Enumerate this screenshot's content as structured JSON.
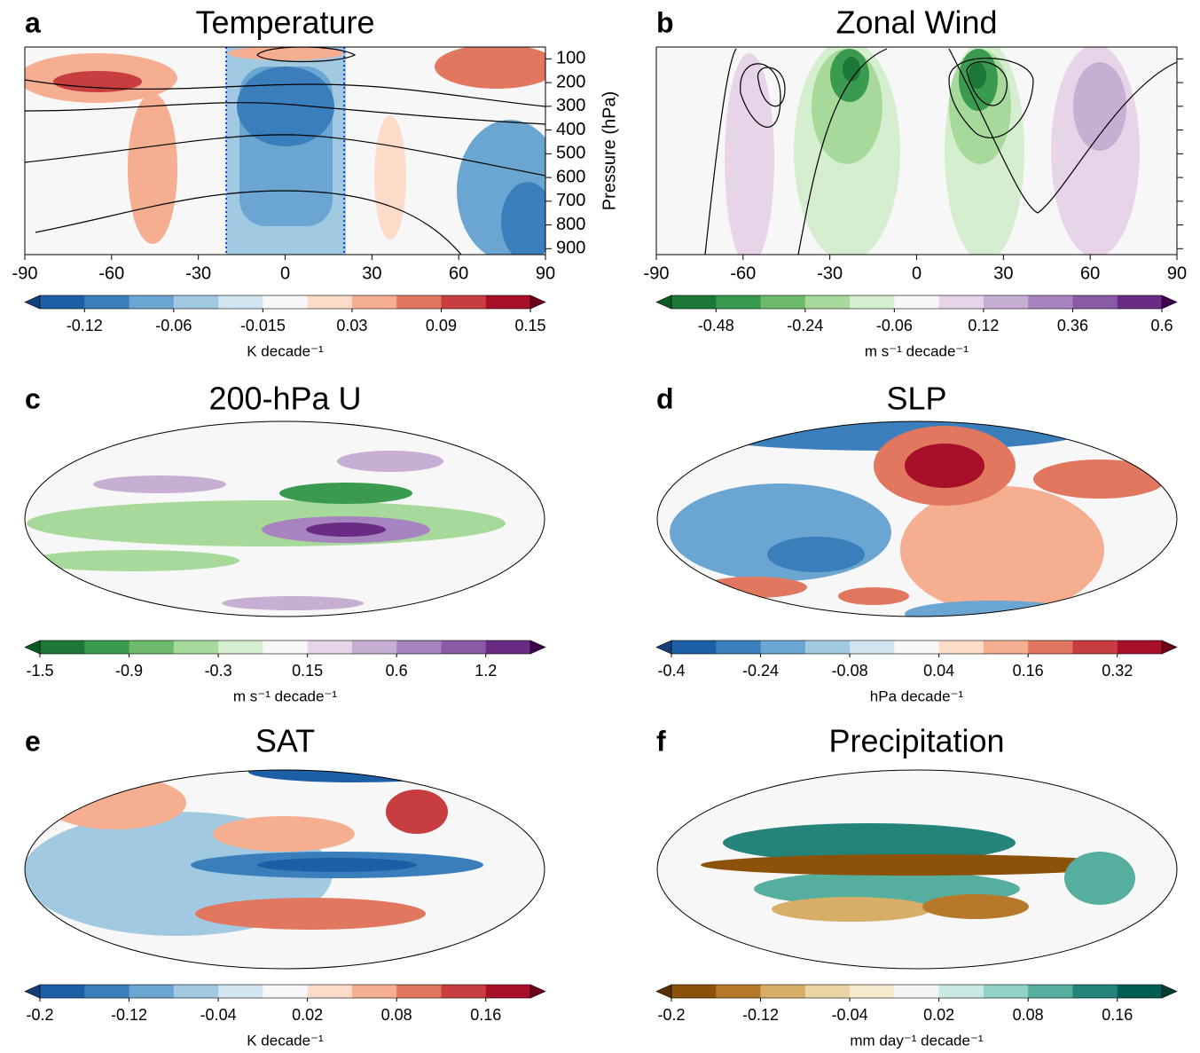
{
  "chart_data": [
    {
      "type": "contour",
      "panel_label": "a",
      "title": "Temperature",
      "xlim": [
        -90,
        90
      ],
      "xticks": [
        -90,
        -60,
        -30,
        0,
        30,
        60,
        90
      ],
      "ylim": [
        925,
        50
      ],
      "yticks": [
        100,
        200,
        300,
        400,
        500,
        600,
        700,
        800,
        900
      ],
      "ytick_labels": true,
      "ylabel": "Pressure (hPa)",
      "colorbar": {
        "label": "K decade⁻¹",
        "levels": [
          -0.15,
          -0.12,
          -0.09,
          -0.06,
          -0.03,
          -0.015,
          0.015,
          0.03,
          0.06,
          0.09,
          0.12,
          0.15
        ],
        "ticks": [
          -0.12,
          -0.06,
          -0.015,
          0.03,
          0.09,
          0.15
        ],
        "colors": [
          "#1d5fa6",
          "#3a7fbc",
          "#6aa6d1",
          "#a2c9e2",
          "#d1e4f0",
          "#f7f7f7",
          "#fcdcc8",
          "#f5ae8f",
          "#e0775e",
          "#c83d3f",
          "#a8102a"
        ],
        "extend_colors": [
          "#123f78",
          "#6b0018"
        ]
      }
    },
    {
      "type": "contour",
      "panel_label": "b",
      "title": "Zonal Wind",
      "xlim": [
        -90,
        90
      ],
      "xticks": [
        -90,
        -60,
        -30,
        0,
        30,
        60,
        90
      ],
      "ylim": [
        925,
        50
      ],
      "yticks": [
        100,
        200,
        300,
        400,
        500,
        600,
        700,
        800,
        900
      ],
      "ytick_labels": false,
      "colorbar": {
        "label": "m s⁻¹ decade⁻¹",
        "levels": [
          -0.6,
          -0.48,
          -0.36,
          -0.24,
          -0.12,
          -0.06,
          0.06,
          0.12,
          0.24,
          0.36,
          0.48,
          0.6
        ],
        "ticks": [
          -0.48,
          -0.24,
          -0.06,
          0.12,
          0.36,
          0.6
        ],
        "colors": [
          "#1b7837",
          "#3a9a4f",
          "#6dbb6a",
          "#a6d99a",
          "#d5eed0",
          "#f7f7f7",
          "#e7d4e8",
          "#c7aed3",
          "#a784c0",
          "#8a5aa5",
          "#6a2b85"
        ],
        "extend_colors": [
          "#0b5a25",
          "#40004b"
        ]
      }
    },
    {
      "type": "map",
      "panel_label": "c",
      "title": "200-hPa U",
      "colorbar": {
        "label": "m s⁻¹ decade⁻¹",
        "levels": [
          -1.5,
          -1.2,
          -0.9,
          -0.6,
          -0.3,
          -0.15,
          0.15,
          0.3,
          0.6,
          0.9,
          1.2,
          1.5
        ],
        "ticks": [
          -1.5,
          -0.9,
          -0.3,
          0.15,
          0.6,
          1.2
        ],
        "colors": [
          "#1b7837",
          "#3a9a4f",
          "#6dbb6a",
          "#a6d99a",
          "#d5eed0",
          "#f7f7f7",
          "#e7d4e8",
          "#c7aed3",
          "#a784c0",
          "#8a5aa5",
          "#6a2b85"
        ],
        "extend_colors": [
          "#0b5a25",
          "#40004b"
        ]
      }
    },
    {
      "type": "map",
      "panel_label": "d",
      "title": "SLP",
      "colorbar": {
        "label": "hPa decade⁻¹",
        "levels": [
          -0.4,
          -0.32,
          -0.24,
          -0.16,
          -0.08,
          -0.04,
          0.04,
          0.08,
          0.16,
          0.24,
          0.32,
          0.4
        ],
        "ticks": [
          -0.4,
          -0.24,
          -0.08,
          0.04,
          0.16,
          0.32
        ],
        "colors": [
          "#1d5fa6",
          "#3a7fbc",
          "#6aa6d1",
          "#a2c9e2",
          "#d1e4f0",
          "#f7f7f7",
          "#fcdcc8",
          "#f5ae8f",
          "#e0775e",
          "#c83d3f",
          "#a8102a"
        ],
        "extend_colors": [
          "#123f78",
          "#6b0018"
        ]
      }
    },
    {
      "type": "map",
      "panel_label": "e",
      "title": "SAT",
      "colorbar": {
        "label": "K decade⁻¹",
        "levels": [
          -0.2,
          -0.16,
          -0.12,
          -0.08,
          -0.04,
          -0.02,
          0.02,
          0.04,
          0.08,
          0.12,
          0.16,
          0.2
        ],
        "ticks": [
          -0.2,
          -0.12,
          -0.04,
          0.02,
          0.08,
          0.16
        ],
        "colors": [
          "#1d5fa6",
          "#3a7fbc",
          "#6aa6d1",
          "#a2c9e2",
          "#d1e4f0",
          "#f7f7f7",
          "#fcdcc8",
          "#f5ae8f",
          "#e0775e",
          "#c83d3f",
          "#a8102a"
        ],
        "extend_colors": [
          "#123f78",
          "#6b0018"
        ]
      }
    },
    {
      "type": "map",
      "panel_label": "f",
      "title": "Precipitation",
      "colorbar": {
        "label": "mm day⁻¹ decade⁻¹",
        "levels": [
          -0.2,
          -0.16,
          -0.12,
          -0.08,
          -0.04,
          -0.02,
          0.02,
          0.04,
          0.08,
          0.12,
          0.16,
          0.2
        ],
        "ticks": [
          -0.2,
          -0.12,
          -0.04,
          0.02,
          0.08,
          0.16
        ],
        "colors": [
          "#8c510a",
          "#b6792a",
          "#d6ae68",
          "#ebd6a3",
          "#f6ebcd",
          "#f5f5f5",
          "#cbe9e4",
          "#93d2c7",
          "#56ae9f",
          "#24847a",
          "#015e53"
        ],
        "extend_colors": [
          "#5b3005",
          "#003c30"
        ]
      }
    }
  ]
}
